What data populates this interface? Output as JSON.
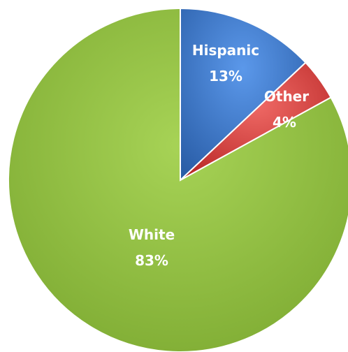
{
  "chart_data": {
    "type": "pie",
    "title": "",
    "categories": [
      "Hispanic",
      "Other",
      "White"
    ],
    "values": [
      13,
      4,
      83
    ],
    "labels": [
      {
        "name": "Hispanic",
        "pct": "13%"
      },
      {
        "name": "Other",
        "pct": "4%"
      },
      {
        "name": "White",
        "pct": "83%"
      }
    ],
    "colors": [
      "#3a7bd5",
      "#e0413f",
      "#8fbf3a"
    ],
    "legend": "none",
    "start_angle": "12 o'clock, clockwise"
  }
}
